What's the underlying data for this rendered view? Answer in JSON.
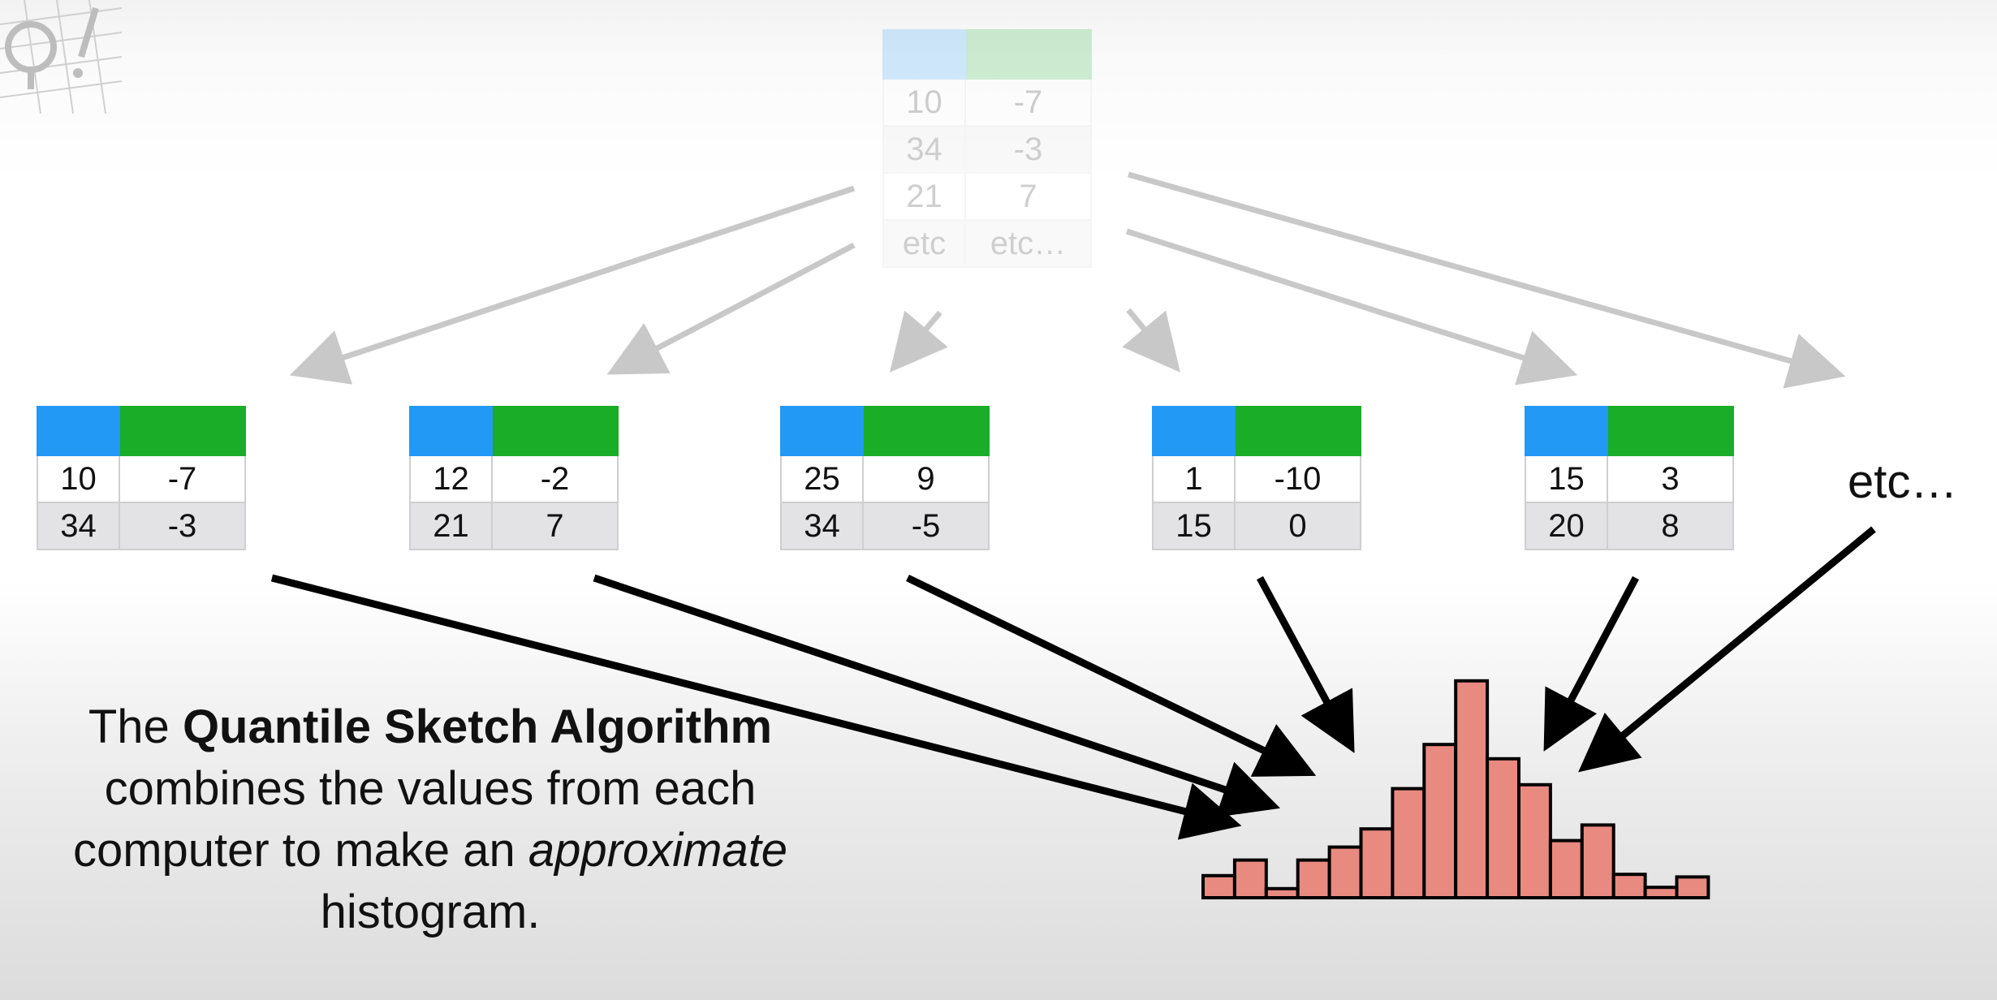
{
  "top_table": {
    "rows": [
      [
        "10",
        "-7"
      ],
      [
        "34",
        "-3"
      ],
      [
        "21",
        "7"
      ],
      [
        "etc",
        "etc…"
      ]
    ]
  },
  "tables": [
    {
      "rows": [
        [
          "10",
          "-7"
        ],
        [
          "34",
          "-3"
        ]
      ]
    },
    {
      "rows": [
        [
          "12",
          "-2"
        ],
        [
          "21",
          "7"
        ]
      ]
    },
    {
      "rows": [
        [
          "25",
          "9"
        ],
        [
          "34",
          "-5"
        ]
      ]
    },
    {
      "rows": [
        [
          "1",
          "-10"
        ],
        [
          "15",
          "0"
        ]
      ]
    },
    {
      "rows": [
        [
          "15",
          "3"
        ],
        [
          "20",
          "8"
        ]
      ]
    }
  ],
  "etc_label": "etc…",
  "caption": {
    "part1": "The ",
    "bold": "Quantile Sketch Algorithm",
    "part2": " combines the values from each computer to make an ",
    "italic": "approximate",
    "part3": " histogram."
  },
  "colors": {
    "header_col1": "#2399f6",
    "header_col2": "#19ad28",
    "histogram_fill": "#e98a80"
  },
  "histogram": {
    "relative_heights": [
      0.17,
      0.29,
      0.07,
      0.29,
      0.39,
      0.53,
      0.84,
      1.18,
      1.67,
      1.07,
      0.87,
      0.44,
      0.56,
      0.18,
      0.08,
      0.16
    ]
  }
}
